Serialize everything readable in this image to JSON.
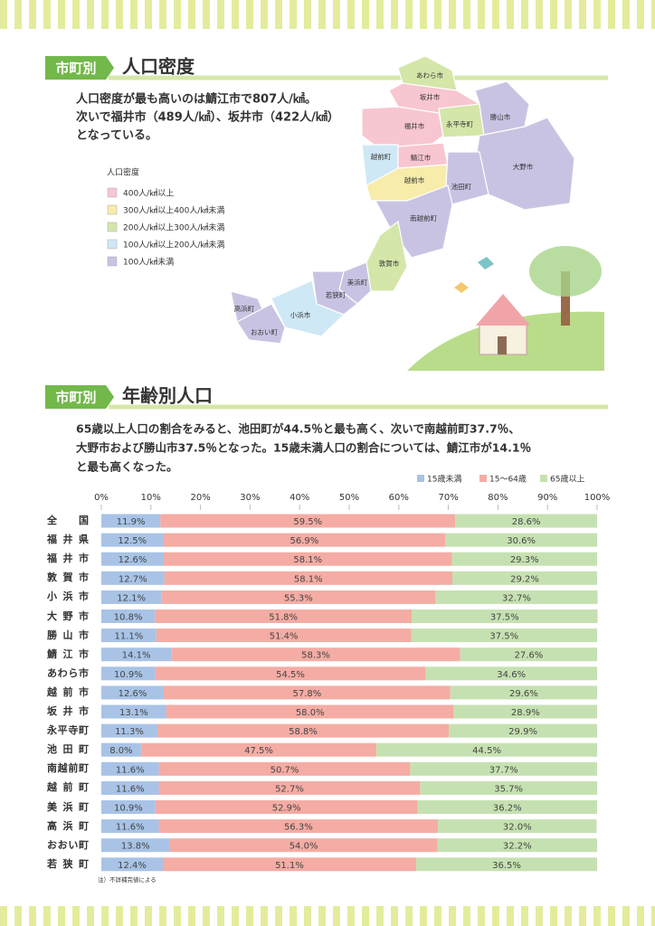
{
  "density": {
    "tag": "市町別",
    "title": "人口密度",
    "text": [
      "人口密度が最も高いのは鯖江市で807人/㎢。",
      "次いで福井市（489人/㎢）、坂井市（422人/㎢）",
      "となっている。"
    ],
    "legend_title": "人口密度",
    "legend": [
      "400人/㎢以上",
      "300人/㎢以上400人/㎢未満",
      "200人/㎢以上300人/㎢未満",
      "100人/㎢以上200人/㎢未満",
      "100人/㎢未満"
    ],
    "map_labels": [
      "あわら市",
      "坂井市",
      "福井市",
      "永平寺町",
      "勝山市",
      "大野市",
      "越前町",
      "鯖江市",
      "越前市",
      "池田町",
      "南越前町",
      "敦賀市",
      "美浜町",
      "若狭町",
      "小浜市",
      "高浜町",
      "おおい町"
    ]
  },
  "age": {
    "tag": "市町別",
    "title": "年齢別人口",
    "text": [
      "65歳以上人口の割合をみると、池田町が44.5％と最も高く、次いで南越前町37.7％、",
      "大野市および勝山市37.5％となった。15歳未満人口の割合については、鯖江市が14.1％",
      "と最も高くなった。"
    ],
    "note": "注）不詳補完値による"
  },
  "chart_data": {
    "type": "stacked_bar_horizontal",
    "categories": [
      "全国",
      "福井県",
      "福井市",
      "敦賀市",
      "小浜市",
      "大野市",
      "勝山市",
      "鯖江市",
      "あわら市",
      "越前市",
      "坂井市",
      "永平寺町",
      "池田町",
      "南越前町",
      "越前町",
      "美浜町",
      "高浜町",
      "おおい町",
      "若狭町"
    ],
    "series": [
      {
        "name": "15歳未満",
        "color": "#a8c3e6",
        "values": [
          11.9,
          12.5,
          12.6,
          12.7,
          12.1,
          10.8,
          11.1,
          14.1,
          10.9,
          12.6,
          13.1,
          11.3,
          8.0,
          11.6,
          11.6,
          10.9,
          11.6,
          13.8,
          12.4
        ],
        "value_labels": [
          "11.9%",
          "12.5%",
          "12.6%",
          "12.7%",
          "12.1%",
          "10.8%",
          "11.1%",
          "14.1%",
          "10.9%",
          "12.6%",
          "13.1%",
          "11.3%",
          "8.0%",
          "11.6%",
          "11.6%",
          "10.9%",
          "11.6%",
          "13.8%",
          "12.4%"
        ]
      },
      {
        "name": "15～64歳",
        "color": "#f4aca4",
        "values": [
          59.5,
          56.9,
          58.1,
          58.1,
          55.3,
          51.8,
          51.4,
          58.3,
          54.5,
          57.8,
          58.0,
          58.8,
          47.5,
          50.7,
          52.7,
          52.9,
          56.3,
          54.0,
          51.1
        ],
        "value_labels": [
          "59.5%",
          "56.9%",
          "58.1%",
          "58.1%",
          "55.3%",
          "51.8%",
          "51.4%",
          "58.3%",
          "54.5%",
          "57.8%",
          "58.0%",
          "58.8%",
          "47.5%",
          "50.7%",
          "52.7%",
          "52.9%",
          "56.3%",
          "54.0%",
          "51.1%"
        ]
      },
      {
        "name": "65歳以上",
        "color": "#c6e1b1",
        "values": [
          28.6,
          30.6,
          29.3,
          29.2,
          32.7,
          37.5,
          37.5,
          27.6,
          34.6,
          29.6,
          28.9,
          29.9,
          44.5,
          37.7,
          35.7,
          36.2,
          32.0,
          32.2,
          36.5
        ],
        "value_labels": [
          "28.6%",
          "30.6%",
          "29.3%",
          "29.2%",
          "32.7%",
          "37.5%",
          "37.5%",
          "27.6%",
          "34.6%",
          "29.6%",
          "28.9%",
          "29.9%",
          "44.5%",
          "37.7%",
          "35.7%",
          "36.2%",
          "32.0%",
          "32.2%",
          "36.5%"
        ]
      }
    ],
    "xlim": [
      0,
      100
    ],
    "xticks": [
      {
        "value": 0,
        "label": "0%"
      },
      {
        "value": 10,
        "label": "10%"
      },
      {
        "value": 20,
        "label": "20%"
      },
      {
        "value": 30,
        "label": "30%"
      },
      {
        "value": 40,
        "label": "40%"
      },
      {
        "value": 50,
        "label": "50%"
      },
      {
        "value": 60,
        "label": "60%"
      },
      {
        "value": 70,
        "label": "70%"
      },
      {
        "value": 80,
        "label": "80%"
      },
      {
        "value": 90,
        "label": "90%"
      },
      {
        "value": 100,
        "label": "100%"
      }
    ]
  }
}
